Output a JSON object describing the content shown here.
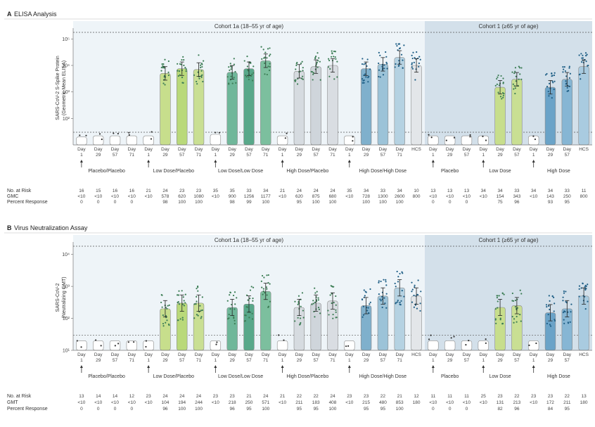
{
  "panels": [
    {
      "letter": "A",
      "title": "ELISA Analysis",
      "ylabel_1": "SARS-CoV-2 S-Spike Protein",
      "ylabel_2": "(Geometric Mean ELISA)",
      "cohort1": "Cohort 1a (18–55 yr of age)",
      "cohort2": "Cohort 1 (≥65 yr of age)",
      "yticks": [
        "10⁵",
        "10⁴",
        "10³",
        "10²"
      ],
      "days": [
        {
          "day": "Day",
          "num": "1"
        },
        {
          "day": "Day",
          "num": "29"
        },
        {
          "day": "Day",
          "num": "57"
        },
        {
          "day": "Day",
          "num": "71"
        },
        {
          "day": "Day",
          "num": "1"
        },
        {
          "day": "Day",
          "num": "29"
        },
        {
          "day": "Day",
          "num": "57"
        },
        {
          "day": "Day",
          "num": "71"
        },
        {
          "day": "Day",
          "num": "1"
        },
        {
          "day": "Day",
          "num": "29"
        },
        {
          "day": "Day",
          "num": "57"
        },
        {
          "day": "Day",
          "num": "71"
        },
        {
          "day": "Day",
          "num": "1"
        },
        {
          "day": "Day",
          "num": "29"
        },
        {
          "day": "Day",
          "num": "57"
        },
        {
          "day": "Day",
          "num": "71"
        },
        {
          "day": "Day",
          "num": "1"
        },
        {
          "day": "Day",
          "num": "29"
        },
        {
          "day": "Day",
          "num": "57"
        },
        {
          "day": "Day",
          "num": "71"
        },
        {
          "day": "HCS",
          "num": ""
        },
        {
          "day": "Day",
          "num": "1"
        },
        {
          "day": "Day",
          "num": "29"
        },
        {
          "day": "Day",
          "num": "57"
        },
        {
          "day": "Day",
          "num": "1"
        },
        {
          "day": "Day",
          "num": "29"
        },
        {
          "day": "Day",
          "num": "57"
        },
        {
          "day": "Day",
          "num": "1"
        },
        {
          "day": "Day",
          "num": "29"
        },
        {
          "day": "Day",
          "num": "57"
        },
        {
          "day": "HCS",
          "num": ""
        }
      ],
      "groups": [
        "Placebo/Placebo",
        "Low Dose/Placebo",
        "Low Dose/Low Dose",
        "High Dose/Placebo",
        "High Dose/High Dose",
        "Placebo",
        "Low Dose",
        "High Dose"
      ],
      "row_labels": [
        "No. at Risk",
        "GMC",
        "Percent Response"
      ],
      "rows": {
        "risk": [
          "16",
          "15",
          "16",
          "16",
          "21",
          "24",
          "23",
          "23",
          "35",
          "35",
          "33",
          "34",
          "21",
          "24",
          "24",
          "24",
          "35",
          "34",
          "33",
          "34",
          "10",
          "13",
          "13",
          "13",
          "34",
          "34",
          "33",
          "34",
          "34",
          "33",
          "11"
        ],
        "gmt": [
          "<10",
          "<10",
          "<10",
          "<10",
          "<10",
          "578",
          "620",
          "1080",
          "<10",
          "900",
          "1256",
          "1177",
          "<10",
          "620",
          "875",
          "680",
          "<10",
          "728",
          "1300",
          "2600",
          "800",
          "<10",
          "<10",
          "<10",
          "<10",
          "154",
          "343",
          "<10",
          "143",
          "250",
          "800"
        ],
        "pct": [
          "0",
          "0",
          "0",
          "0",
          "",
          "98",
          "100",
          "100",
          "",
          "98",
          "99",
          "100",
          "",
          "95",
          "100",
          "100",
          "",
          "100",
          "100",
          "100",
          "",
          "0",
          "0",
          "0",
          "",
          "75",
          "96",
          "",
          "93",
          "95",
          ""
        ]
      }
    },
    {
      "letter": "B",
      "title": "Virus Neutralization Assay",
      "ylabel_1": "SARS-CoV-2",
      "ylabel_2": "(Neutralizing GMT)",
      "cohort1": "Cohort 1a (18–55 yr of age)",
      "cohort2": "Cohort 1 (≥65 yr of age)",
      "yticks": [
        "10⁴",
        "10³",
        "10²",
        "10¹"
      ],
      "days": [
        {
          "day": "Day",
          "num": "1"
        },
        {
          "day": "Day",
          "num": "29"
        },
        {
          "day": "Day",
          "num": "57"
        },
        {
          "day": "Day",
          "num": "71"
        },
        {
          "day": "Day",
          "num": "1"
        },
        {
          "day": "Day",
          "num": "29"
        },
        {
          "day": "Day",
          "num": "57"
        },
        {
          "day": "Day",
          "num": "71"
        },
        {
          "day": "Day",
          "num": "1"
        },
        {
          "day": "Day",
          "num": "29"
        },
        {
          "day": "Day",
          "num": "57"
        },
        {
          "day": "Day",
          "num": "71"
        },
        {
          "day": "Day",
          "num": "1"
        },
        {
          "day": "Day",
          "num": "29"
        },
        {
          "day": "Day",
          "num": "57"
        },
        {
          "day": "Day",
          "num": "71"
        },
        {
          "day": "Day",
          "num": "1"
        },
        {
          "day": "Day",
          "num": "29"
        },
        {
          "day": "Day",
          "num": "57"
        },
        {
          "day": "Day",
          "num": "71"
        },
        {
          "day": "HCS",
          "num": ""
        },
        {
          "day": "Day",
          "num": "1"
        },
        {
          "day": "Day",
          "num": "29"
        },
        {
          "day": "Day",
          "num": "57"
        },
        {
          "day": "Day",
          "num": "1"
        },
        {
          "day": "Day",
          "num": "29"
        },
        {
          "day": "Day",
          "num": "57"
        },
        {
          "day": "Day",
          "num": "1"
        },
        {
          "day": "Day",
          "num": "29"
        },
        {
          "day": "Day",
          "num": "57"
        },
        {
          "day": "HCS",
          "num": ""
        }
      ],
      "groups": [
        "Placebo/Placebo",
        "Low Dose/Placebo",
        "Low Dose/Low Dose",
        "High Dose/Placebo",
        "High Dose/High Dose",
        "Placebo",
        "Low Dose",
        "High Dose"
      ],
      "row_labels": [
        "No. at Risk",
        "GMT",
        "Percent Response"
      ],
      "rows": {
        "risk": [
          "13",
          "14",
          "14",
          "12",
          "23",
          "24",
          "24",
          "24",
          "23",
          "23",
          "21",
          "24",
          "21",
          "22",
          "22",
          "24",
          "23",
          "23",
          "22",
          "21",
          "12",
          "11",
          "11",
          "11",
          "25",
          "23",
          "22",
          "23",
          "23",
          "22",
          "13"
        ],
        "gmt": [
          "<10",
          "<10",
          "<10",
          "<10",
          "<10",
          "104",
          "194",
          "244",
          "<10",
          "218",
          "250",
          "571",
          "<10",
          "211",
          "183",
          "408",
          "<10",
          "215",
          "480",
          "853",
          "180",
          "<10",
          "<10",
          "<10",
          "<10",
          "131",
          "213",
          "<10",
          "172",
          "211",
          "180"
        ],
        "pct": [
          "0",
          "0",
          "0",
          "0",
          "",
          "96",
          "100",
          "100",
          "",
          "96",
          "95",
          "100",
          "",
          "95",
          "95",
          "100",
          "",
          "95",
          "95",
          "100",
          "",
          "0",
          "0",
          "0",
          "",
          "82",
          "96",
          "",
          "84",
          "95",
          ""
        ]
      }
    }
  ],
  "chart_data": [
    {
      "type": "scatter",
      "title": "ELISA Analysis",
      "ylabel": "SARS-CoV-2 S-Spike Protein (Geometric Mean ELISA)",
      "yscale": "log",
      "ylim": [
        10,
        200000
      ],
      "categories": [
        "Day 1",
        "Day 29",
        "Day 57",
        "Day 71",
        "Day 1",
        "Day 29",
        "Day 57",
        "Day 71",
        "Day 1",
        "Day 29",
        "Day 57",
        "Day 71",
        "Day 1",
        "Day 29",
        "Day 57",
        "Day 71",
        "Day 1",
        "Day 29",
        "Day 57",
        "Day 71",
        "HCS",
        "Day 1",
        "Day 29",
        "Day 57",
        "Day 1",
        "Day 29",
        "Day 57",
        "Day 1",
        "Day 29",
        "Day 57",
        "HCS"
      ],
      "values": [
        20,
        22,
        22,
        22,
        22,
        5000,
        7500,
        7000,
        25,
        5500,
        7500,
        15000,
        22,
        6000,
        9000,
        10000,
        22,
        7500,
        11000,
        20000,
        10000,
        22,
        22,
        22,
        22,
        1500,
        3000,
        22,
        1500,
        3000,
        9000
      ],
      "colors": [
        "#ffffff",
        "#ffffff",
        "#ffffff",
        "#ffffff",
        "#ffffff",
        "#c7de8c",
        "#b9d97a",
        "#c9df93",
        "#ffffff",
        "#6fb79a",
        "#58a88a",
        "#7cbf9e",
        "#ffffff",
        "#d6dbe0",
        "#cfd5db",
        "#d9dde2",
        "#ffffff",
        "#7fb0cc",
        "#9cc3d8",
        "#b5d2e2",
        "#e3e6e9",
        "#ffffff",
        "#ffffff",
        "#ffffff",
        "#ffffff",
        "#c7de8c",
        "#c9df93",
        "#ffffff",
        "#6aa3c8",
        "#86b6d4",
        "#a9cbe0"
      ]
    },
    {
      "type": "scatter",
      "title": "Virus Neutralization Assay",
      "ylabel": "SARS-CoV-2 (Neutralizing GMT)",
      "yscale": "log",
      "ylim": [
        10,
        20000
      ],
      "categories": [
        "Day 1",
        "Day 29",
        "Day 57",
        "Day 71",
        "Day 1",
        "Day 29",
        "Day 57",
        "Day 71",
        "Day 1",
        "Day 29",
        "Day 57",
        "Day 71",
        "Day 1",
        "Day 29",
        "Day 57",
        "Day 71",
        "Day 1",
        "Day 29",
        "Day 57",
        "Day 71",
        "HCS",
        "Day 1",
        "Day 29",
        "Day 57",
        "Day 1",
        "Day 29",
        "Day 57",
        "Day 1",
        "Day 29",
        "Day 57",
        "HCS"
      ],
      "values": [
        20,
        20,
        20,
        20,
        20,
        200,
        300,
        300,
        20,
        220,
        280,
        700,
        20,
        220,
        300,
        350,
        20,
        250,
        500,
        900,
        500,
        20,
        20,
        20,
        20,
        220,
        250,
        20,
        150,
        200,
        500
      ],
      "colors": [
        "#ffffff",
        "#ffffff",
        "#ffffff",
        "#ffffff",
        "#ffffff",
        "#c7de8c",
        "#b9d97a",
        "#c9df93",
        "#ffffff",
        "#6fb79a",
        "#58a88a",
        "#7cbf9e",
        "#ffffff",
        "#d6dbe0",
        "#cfd5db",
        "#d9dde2",
        "#ffffff",
        "#7fb0cc",
        "#9cc3d8",
        "#b5d2e2",
        "#e3e6e9",
        "#ffffff",
        "#ffffff",
        "#ffffff",
        "#ffffff",
        "#c7de8c",
        "#c9df93",
        "#ffffff",
        "#6aa3c8",
        "#86b6d4",
        "#a9cbe0"
      ]
    }
  ]
}
